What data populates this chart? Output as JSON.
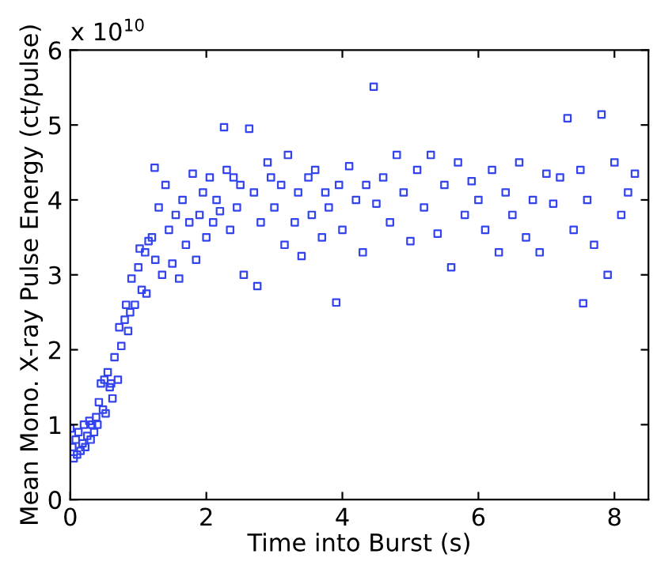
{
  "chart_data": {
    "type": "scatter",
    "xlabel": "Time into Burst (s)",
    "ylabel": "Mean Mono. X-ray Pulse Energy (ct/pulse)",
    "annotations": [
      "x 10$^{10}$"
    ],
    "xlim": [
      0,
      8.5
    ],
    "ylim": [
      0,
      6
    ],
    "xticks": [
      0,
      2,
      4,
      6,
      8
    ],
    "yticks": [
      0,
      1,
      2,
      3,
      4,
      5,
      6
    ],
    "grid": false,
    "marker": "square",
    "series": [
      {
        "color": "#3344ee",
        "x": [
          0.0,
          0.03,
          0.05,
          0.08,
          0.1,
          0.12,
          0.15,
          0.18,
          0.2,
          0.22,
          0.25,
          0.28,
          0.3,
          0.32,
          0.35,
          0.38,
          0.4,
          0.42,
          0.45,
          0.48,
          0.5,
          0.52,
          0.55,
          0.58,
          0.6,
          0.62,
          0.65,
          0.7,
          0.72,
          0.75,
          0.8,
          0.82,
          0.85,
          0.88,
          0.9,
          0.95,
          1.0,
          1.02,
          1.05,
          1.1,
          1.12,
          1.15,
          1.2,
          1.24,
          1.25,
          1.3,
          1.35,
          1.4,
          1.45,
          1.5,
          1.55,
          1.6,
          1.65,
          1.7,
          1.75,
          1.8,
          1.85,
          1.9,
          1.95,
          2.0,
          2.05,
          2.1,
          2.15,
          2.2,
          2.26,
          2.3,
          2.35,
          2.4,
          2.45,
          2.5,
          2.55,
          2.63,
          2.7,
          2.75,
          2.8,
          2.9,
          2.95,
          3.0,
          3.1,
          3.15,
          3.2,
          3.3,
          3.35,
          3.4,
          3.5,
          3.55,
          3.6,
          3.7,
          3.75,
          3.8,
          3.91,
          3.95,
          4.0,
          4.1,
          4.2,
          4.3,
          4.35,
          4.46,
          4.5,
          4.6,
          4.7,
          4.8,
          4.9,
          5.0,
          5.1,
          5.2,
          5.3,
          5.4,
          5.5,
          5.6,
          5.7,
          5.8,
          5.9,
          6.0,
          6.1,
          6.2,
          6.3,
          6.4,
          6.5,
          6.6,
          6.7,
          6.8,
          6.9,
          7.0,
          7.1,
          7.2,
          7.31,
          7.4,
          7.5,
          7.54,
          7.6,
          7.7,
          7.81,
          7.9,
          8.0,
          8.1,
          8.2,
          8.3
        ],
        "values": [
          0.95,
          0.7,
          0.55,
          0.8,
          0.6,
          0.9,
          0.65,
          0.75,
          1.0,
          0.7,
          0.85,
          1.05,
          0.8,
          1.0,
          0.9,
          1.1,
          1.0,
          1.3,
          1.55,
          1.2,
          1.6,
          1.15,
          1.7,
          1.5,
          1.55,
          1.35,
          1.9,
          1.6,
          2.3,
          2.05,
          2.4,
          2.6,
          2.25,
          2.5,
          2.95,
          2.6,
          3.1,
          3.35,
          2.8,
          3.3,
          2.75,
          3.45,
          3.5,
          4.43,
          3.2,
          3.9,
          3.0,
          4.2,
          3.6,
          3.15,
          3.8,
          2.95,
          4.0,
          3.4,
          3.7,
          4.35,
          3.2,
          3.8,
          4.1,
          3.5,
          4.3,
          3.7,
          4.0,
          3.85,
          4.97,
          4.4,
          3.6,
          4.3,
          3.9,
          4.2,
          3.0,
          4.95,
          4.1,
          2.85,
          3.7,
          4.5,
          4.3,
          3.9,
          4.2,
          3.4,
          4.6,
          3.7,
          4.1,
          3.25,
          4.3,
          3.8,
          4.4,
          3.5,
          4.1,
          3.9,
          2.63,
          4.2,
          3.6,
          4.45,
          4.0,
          3.3,
          4.2,
          5.51,
          3.95,
          4.3,
          3.7,
          4.6,
          4.1,
          3.45,
          4.4,
          3.9,
          4.6,
          3.55,
          4.2,
          3.1,
          4.5,
          3.8,
          4.25,
          4.0,
          3.6,
          4.4,
          3.3,
          4.1,
          3.8,
          4.5,
          3.5,
          4.0,
          3.3,
          4.35,
          3.95,
          4.3,
          5.09,
          3.6,
          4.4,
          2.62,
          4.0,
          3.4,
          5.14,
          3.0,
          4.5,
          3.8,
          4.1,
          4.35
        ]
      }
    ]
  }
}
